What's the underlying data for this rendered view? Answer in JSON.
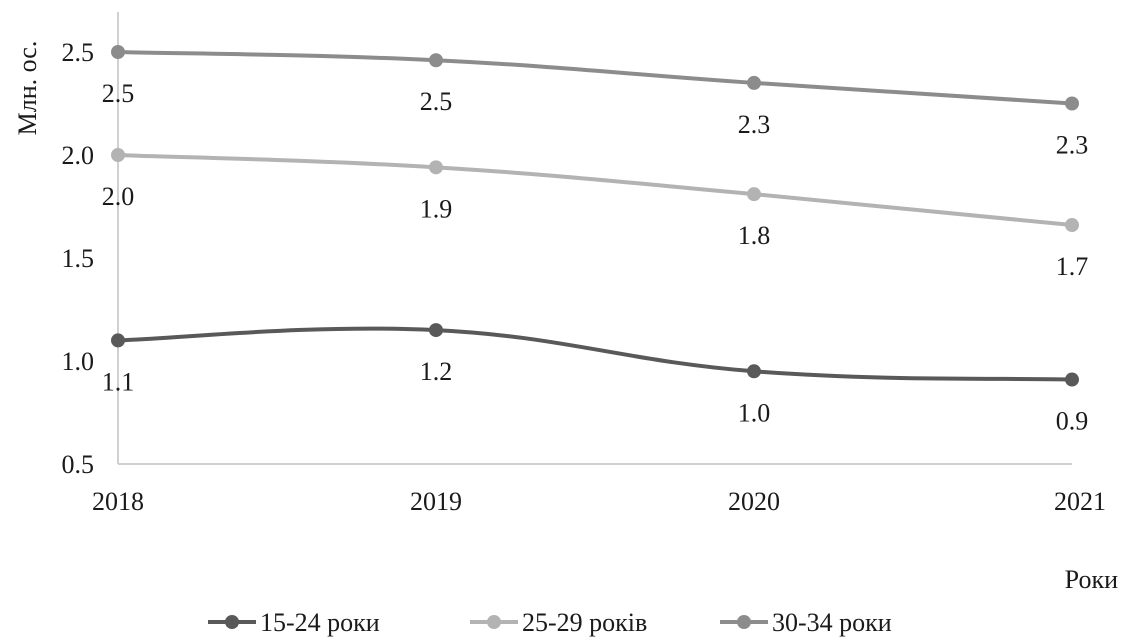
{
  "chart_data": {
    "type": "line",
    "categories": [
      "2018",
      "2019",
      "2020",
      "2021"
    ],
    "series": [
      {
        "name": "15-24 роки",
        "values": [
          1.1,
          1.15,
          0.95,
          0.91
        ],
        "labels": [
          "1.1",
          "1.2",
          "1.0",
          "0.9"
        ],
        "color": "#595959"
      },
      {
        "name": "25-29 років",
        "values": [
          2.0,
          1.94,
          1.81,
          1.66
        ],
        "labels": [
          "2.0",
          "1.9",
          "1.8",
          "1.7"
        ],
        "color": "#b3b3b3"
      },
      {
        "name": "30-34 роки",
        "values": [
          2.5,
          2.46,
          2.35,
          2.25
        ],
        "labels": [
          "2.5",
          "2.5",
          "2.3",
          "2.3"
        ],
        "color": "#8c8c8c"
      }
    ],
    "ylabel": "Млн. ос.",
    "xlabel": "Роки",
    "yticks": [
      "0.5",
      "1.0",
      "1.5",
      "2.0",
      "2.5"
    ],
    "ylim": [
      0.5,
      2.7
    ],
    "grid": false,
    "legend_position": "bottom",
    "smooth": true
  }
}
